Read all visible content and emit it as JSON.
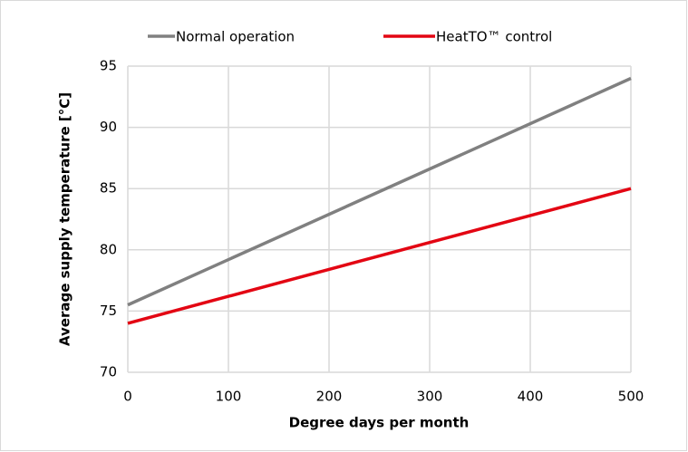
{
  "chart_data": {
    "type": "line",
    "x_label": "Degree days per month",
    "y_label": "Average supply temperature [°C]",
    "x": [
      0,
      500
    ],
    "series": [
      {
        "name": "Normal operation",
        "color": "#808080",
        "values": [
          75.5,
          94
        ]
      },
      {
        "name": "HeatTO™ control",
        "color": "#e30613",
        "values": [
          74,
          85
        ]
      }
    ],
    "xlim": [
      0,
      500
    ],
    "xticks": [
      0,
      100,
      200,
      300,
      400,
      500
    ],
    "ylim": [
      70,
      95
    ],
    "yticks": [
      70,
      75,
      80,
      85,
      90,
      95
    ],
    "grid": true,
    "legend": "top"
  }
}
